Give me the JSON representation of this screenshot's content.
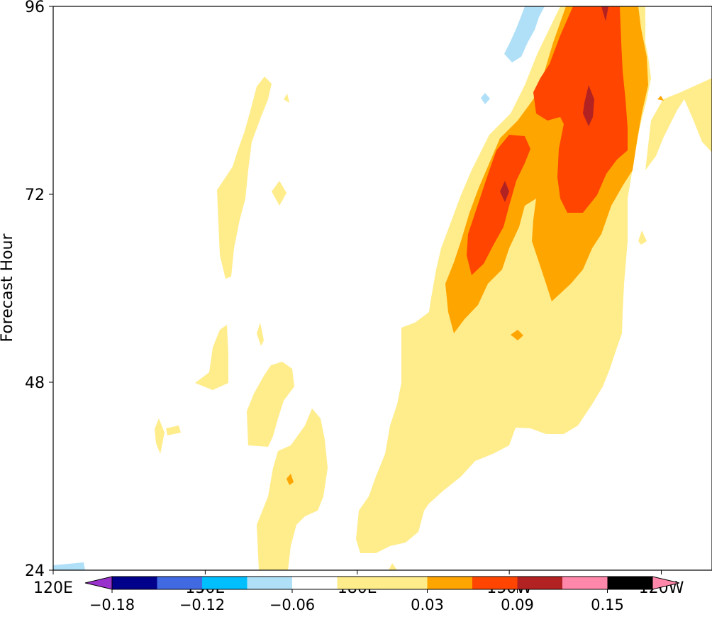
{
  "chart_data": {
    "type": "heatmap",
    "title": "",
    "xlabel": "",
    "ylabel": "Forecast Hour",
    "x_ticks": [
      "120E",
      "150E",
      "180E",
      "150W",
      "120W"
    ],
    "y_ticks": [
      "24",
      "48",
      "72",
      "96"
    ],
    "x_range_deg_east": [
      120,
      250
    ],
    "ylim": [
      24,
      96
    ],
    "grid": false,
    "colorbar": {
      "orientation": "horizontal",
      "extend": "both",
      "levels": [
        -0.18,
        -0.15,
        -0.12,
        -0.09,
        -0.06,
        -0.03,
        0.03,
        0.06,
        0.09,
        0.12,
        0.15,
        0.18
      ],
      "tick_labels": [
        "−0.18",
        "−0.12",
        "−0.06",
        "0.03",
        "0.09",
        "0.15"
      ],
      "tick_values": [
        -0.18,
        -0.12,
        -0.06,
        0.03,
        0.09,
        0.15
      ],
      "colors": [
        "#9932cc",
        "#00008b",
        "#4169e1",
        "#00bfff",
        "#b0e0f8",
        "#ffffff",
        "#ffec8b",
        "#ffa500",
        "#ff4500",
        "#b22222",
        "#ff88aa"
      ]
    },
    "level_colors": {
      "light_blue": "#b0e0f8",
      "yellow": "#ffec8b",
      "orange": "#ffa500",
      "red_orange": "#ff4500",
      "dark_red": "#b22222"
    },
    "features": [
      {
        "level": "yellow",
        "lon_range": [
          240,
          250
        ],
        "hour_range": [
          80,
          96
        ]
      },
      {
        "level": "yellow",
        "lon_range": [
          185,
          232
        ],
        "hour_range": [
          24,
          92
        ]
      },
      {
        "level": "yellow",
        "lon_range": [
          155,
          167
        ],
        "hour_range": [
          24,
          48
        ]
      },
      {
        "level": "yellow",
        "lon_range": [
          145,
          152
        ],
        "hour_range": [
          48,
          56
        ]
      },
      {
        "level": "yellow",
        "lon_range": [
          151,
          159
        ],
        "hour_range": [
          62,
          88
        ]
      },
      {
        "level": "orange",
        "lon_range": [
          203,
          235
        ],
        "hour_range": [
          55,
          96
        ]
      },
      {
        "level": "red_orange",
        "lon_range": [
          211,
          230
        ],
        "hour_range": [
          65,
          96
        ]
      },
      {
        "level": "dark_red",
        "lon_range": [
          228,
          230
        ],
        "hour_range": [
          79,
          85
        ]
      },
      {
        "level": "dark_red",
        "lon_range": [
          214,
          215
        ],
        "hour_range": [
          72,
          74
        ]
      },
      {
        "level": "light_blue",
        "lon_range": [
          220,
          228
        ],
        "hour_range": [
          89,
          96
        ]
      },
      {
        "level": "light_blue",
        "lon_range": [
          120,
          125
        ],
        "hour_range": [
          24,
          25
        ]
      }
    ]
  }
}
